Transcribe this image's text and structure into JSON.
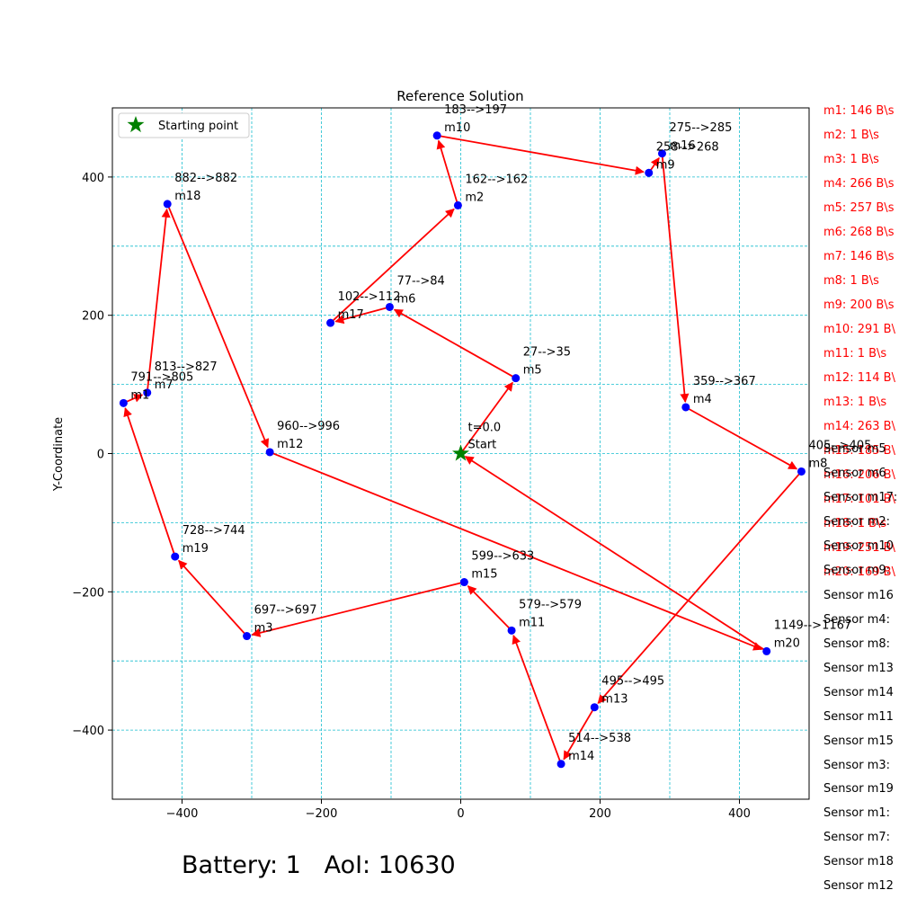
{
  "chart_data": {
    "type": "scatter",
    "title": "Reference Solution",
    "xlabel": "",
    "ylabel": "Y-Coordinate",
    "xlim": [
      -500,
      500
    ],
    "ylim": [
      -500,
      500
    ],
    "xticks": [
      -400,
      -200,
      0,
      200,
      400
    ],
    "yticks": [
      -400,
      -200,
      0,
      200,
      400
    ],
    "grid": true,
    "legend": {
      "position": "top-left",
      "entries": [
        {
          "label": "Starting point",
          "marker": "green-star"
        }
      ]
    },
    "start": {
      "x": 0,
      "y": 0,
      "time_label": "t=0.0",
      "name": "Start"
    },
    "nodes": [
      {
        "name": "m1",
        "x": -484,
        "y": 73,
        "time": "791-->805"
      },
      {
        "name": "m2",
        "x": -4,
        "y": 359,
        "time": "162-->162"
      },
      {
        "name": "m3",
        "x": -307,
        "y": -264,
        "time": "697-->697"
      },
      {
        "name": "m4",
        "x": 323,
        "y": 67,
        "time": "359-->367"
      },
      {
        "name": "m5",
        "x": 79,
        "y": 109,
        "time": "27-->35"
      },
      {
        "name": "m6",
        "x": -102,
        "y": 212,
        "time": "77-->84"
      },
      {
        "name": "m7",
        "x": -450,
        "y": 88,
        "time": "813-->827"
      },
      {
        "name": "m8",
        "x": 489,
        "y": -26,
        "time": "405-->405"
      },
      {
        "name": "m9",
        "x": 270,
        "y": 406,
        "time": "258-->268"
      },
      {
        "name": "m10",
        "x": -34,
        "y": 460,
        "time": "183-->197"
      },
      {
        "name": "m11",
        "x": 73,
        "y": -256,
        "time": "579-->579"
      },
      {
        "name": "m12",
        "x": -274,
        "y": 2,
        "time": "960-->996"
      },
      {
        "name": "m13",
        "x": 192,
        "y": -367,
        "time": "495-->495"
      },
      {
        "name": "m14",
        "x": 144,
        "y": -449,
        "time": "514-->538"
      },
      {
        "name": "m15",
        "x": 5,
        "y": -186,
        "time": "599-->633"
      },
      {
        "name": "m16",
        "x": 289,
        "y": 434,
        "time": "275-->285"
      },
      {
        "name": "m17",
        "x": -187,
        "y": 189,
        "time": "102-->112"
      },
      {
        "name": "m18",
        "x": -421,
        "y": 361,
        "time": "882-->882"
      },
      {
        "name": "m19",
        "x": -410,
        "y": -149,
        "time": "728-->744"
      },
      {
        "name": "m20",
        "x": 439,
        "y": -286,
        "time": "1149-->1167"
      }
    ],
    "route": [
      "Start",
      "m5",
      "m6",
      "m17",
      "m2",
      "m10",
      "m9",
      "m16",
      "m4",
      "m8",
      "m13",
      "m14",
      "m11",
      "m15",
      "m3",
      "m19",
      "m1",
      "m7",
      "m18",
      "m12",
      "m20",
      "Start"
    ]
  },
  "sidebar": {
    "red_lines": [
      "m1: 146 B\\s",
      "m2: 1 B\\s",
      "m3: 1 B\\s",
      "m4: 266 B\\s",
      "m5: 257 B\\s",
      "m6: 268 B\\s",
      "m7: 146 B\\s",
      "m8: 1 B\\s",
      "m9: 200 B\\s",
      "m10: 291 B\\",
      "m11: 1 B\\s",
      "m12: 114 B\\",
      "m13: 1 B\\s",
      "m14: 263 B\\",
      "m15: 185 B\\",
      "m16: 206 B\\",
      "m17: 101 B\\",
      "m18: 1 B\\s",
      "m19: 251 B\\",
      "m20: 169 B\\"
    ],
    "black_lines": [
      "Sensor m5",
      "Sensor m6",
      "Sensor m17:",
      "Sensor m2:",
      "Sensor m10",
      "Sensor m9:",
      "Sensor m16",
      "Sensor m4:",
      "Sensor m8:",
      "Sensor m13",
      "Sensor m14",
      "Sensor m11",
      "Sensor m15",
      "Sensor m3:",
      "Sensor m19",
      "Sensor m1:",
      "Sensor m7:",
      "Sensor m18",
      "Sensor m12"
    ]
  },
  "footer": {
    "battery": "Battery: 1",
    "aoi": "AoI: 10630"
  }
}
